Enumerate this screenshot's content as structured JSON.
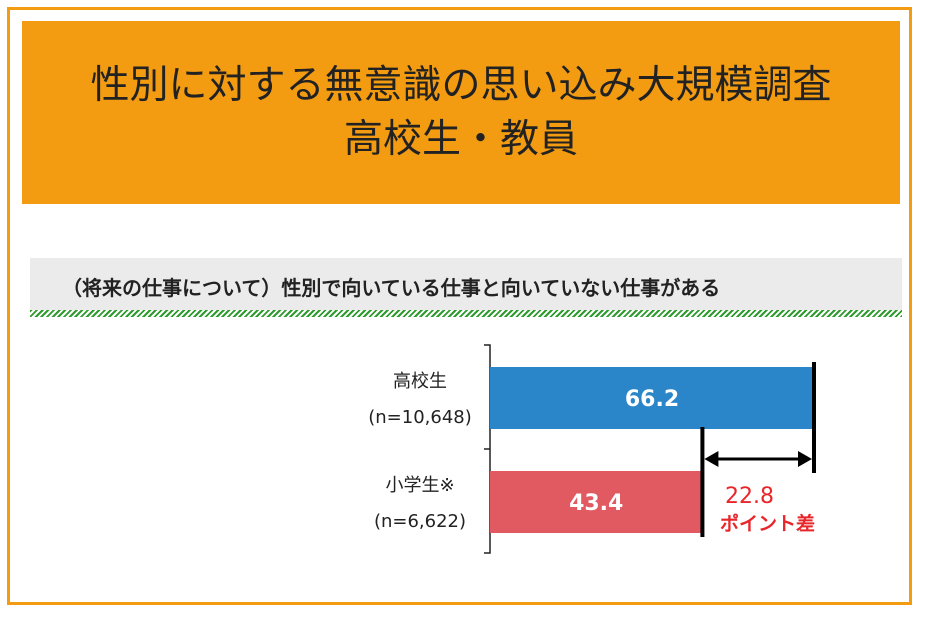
{
  "title": {
    "line1": "性別に対する無意識の思い込み大規模調査",
    "line2": "高校生・教員"
  },
  "subtitle": "（将来の仕事について）性別で向いている仕事と向いていない仕事がある",
  "colors": {
    "frame": "#f39c12",
    "banner": "#f39c12",
    "hatch": "#2e9b2e",
    "bar_high": "#2b86c9",
    "bar_elem": "#e15a62",
    "diff_text": "#e8262a"
  },
  "chart_data": {
    "type": "bar",
    "orientation": "horizontal",
    "categories": [
      "高校生",
      "小学生※"
    ],
    "category_notes": [
      "(n=10,648)",
      "(n=6,622)"
    ],
    "values": [
      66.2,
      43.4
    ],
    "value_labels": [
      "66.2",
      "43.4"
    ],
    "annotation": {
      "value_text": "22.8",
      "unit_text": "ポイント差",
      "difference": 22.8
    },
    "xlim": [
      0,
      66.2
    ]
  }
}
